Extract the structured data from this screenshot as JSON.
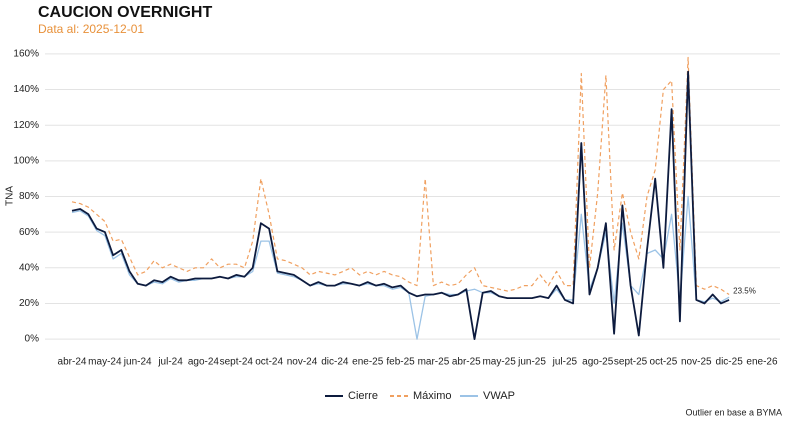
{
  "chart_data": {
    "type": "line",
    "title": "CAUCION OVERNIGHT",
    "subtitle": "Data al: 2025-12-01",
    "y_label": "TNA",
    "caption": "Outlier en base a BYMA",
    "end_label": "23.5%",
    "grid": true,
    "legend": "bottom",
    "categories": [
      "abr-24",
      null,
      null,
      null,
      "may-24",
      null,
      null,
      null,
      "jun-24",
      null,
      null,
      null,
      "jul-24",
      null,
      null,
      null,
      "ago-24",
      null,
      null,
      null,
      "sept-24",
      null,
      null,
      null,
      "oct-24",
      null,
      null,
      null,
      "nov-24",
      null,
      null,
      null,
      "dic-24",
      null,
      null,
      null,
      "ene-25",
      null,
      null,
      null,
      "feb-25",
      null,
      null,
      null,
      "mar-25",
      null,
      null,
      null,
      "abr-25",
      null,
      null,
      null,
      "may-25",
      null,
      null,
      null,
      "jun-25",
      null,
      null,
      null,
      "jul-25",
      null,
      null,
      null,
      "ago-25",
      null,
      null,
      null,
      "sept-25",
      null,
      null,
      null,
      "oct-25",
      null,
      null,
      null,
      "nov-25",
      null,
      null,
      null,
      "dic-25",
      null,
      null,
      null,
      "ene-26"
    ],
    "ylim": [
      -5,
      165
    ],
    "yticks": [
      {
        "value": 0,
        "label": "0%"
      },
      {
        "value": 20,
        "label": "20%"
      },
      {
        "value": 40,
        "label": "40%"
      },
      {
        "value": 60,
        "label": "60%"
      },
      {
        "value": 80,
        "label": "80%"
      },
      {
        "value": 100,
        "label": "100%"
      },
      {
        "value": 120,
        "label": "120%"
      },
      {
        "value": 140,
        "label": "140%"
      },
      {
        "value": 160,
        "label": "160%"
      }
    ],
    "series": [
      {
        "name": "Cierre",
        "color": "#0d1b3e",
        "dashed": false,
        "values": [
          72,
          73,
          70,
          62,
          60,
          47,
          50,
          38,
          31,
          30,
          33,
          32,
          35,
          33,
          33,
          34,
          34,
          34,
          35,
          34,
          36,
          35,
          40,
          65,
          62,
          38,
          37,
          36,
          33,
          30,
          32,
          30,
          30,
          32,
          31,
          30,
          32,
          30,
          31,
          29,
          30,
          26,
          24,
          25,
          25,
          26,
          24,
          25,
          28,
          0,
          26,
          27,
          24,
          23,
          23,
          23,
          23,
          24,
          23,
          30,
          22,
          20,
          110,
          25,
          40,
          65,
          3,
          75,
          30,
          2,
          50,
          90,
          40,
          129,
          10,
          150,
          22,
          20,
          25,
          20,
          22,
          null,
          null,
          null,
          null
        ]
      },
      {
        "name": "Máximo",
        "color": "#f0a060",
        "dashed": true,
        "values": [
          77,
          76,
          74,
          70,
          66,
          55,
          56,
          46,
          36,
          38,
          44,
          40,
          42,
          40,
          38,
          40,
          40,
          45,
          40,
          42,
          42,
          40,
          55,
          90,
          70,
          45,
          44,
          42,
          40,
          36,
          38,
          37,
          36,
          38,
          40,
          36,
          38,
          36,
          38,
          36,
          35,
          32,
          30,
          90,
          30,
          32,
          30,
          31,
          36,
          40,
          30,
          29,
          28,
          27,
          28,
          30,
          30,
          36,
          30,
          38,
          30,
          30,
          149,
          40,
          82,
          148,
          50,
          82,
          60,
          45,
          80,
          95,
          140,
          145,
          50,
          158,
          30,
          28,
          30,
          28,
          25,
          null,
          null,
          null,
          null
        ]
      },
      {
        "name": "VWAP",
        "color": "#9cc3e6",
        "dashed": false,
        "values": [
          71,
          72,
          69,
          61,
          58,
          45,
          48,
          36,
          31,
          30,
          32,
          31,
          34,
          32,
          33,
          33,
          34,
          34,
          35,
          34,
          35,
          35,
          38,
          55,
          55,
          37,
          36,
          35,
          33,
          30,
          31,
          30,
          30,
          31,
          31,
          30,
          31,
          30,
          30,
          28,
          29,
          26,
          0,
          24,
          25,
          26,
          25,
          25,
          27,
          28,
          26,
          26,
          24,
          23,
          23,
          23,
          23,
          24,
          23,
          28,
          22,
          22,
          70,
          28,
          40,
          60,
          20,
          65,
          30,
          25,
          48,
          50,
          45,
          70,
          22,
          80,
          22,
          21,
          23,
          21,
          23.5,
          null,
          null,
          null,
          null
        ]
      }
    ]
  }
}
